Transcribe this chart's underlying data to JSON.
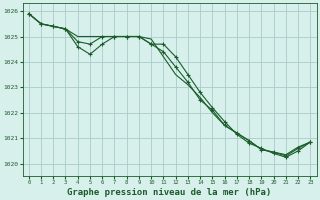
{
  "background_color": "#d8f0ec",
  "grid_color": "#aacccc",
  "line_color": "#1a5c2a",
  "xlabel": "Graphe pression niveau de la mer (hPa)",
  "xlabel_fontsize": 6.5,
  "xlim": [
    -0.5,
    23.5
  ],
  "ylim": [
    1019.5,
    1026.3
  ],
  "yticks": [
    1020,
    1021,
    1022,
    1023,
    1024,
    1025,
    1026
  ],
  "xticks": [
    0,
    1,
    2,
    3,
    4,
    5,
    6,
    7,
    8,
    9,
    10,
    11,
    12,
    13,
    14,
    15,
    16,
    17,
    18,
    19,
    20,
    21,
    22,
    23
  ],
  "series": [
    {
      "x": [
        0,
        1,
        2,
        3,
        4,
        5,
        6,
        7,
        8,
        9,
        10,
        11,
        12,
        13,
        14,
        15,
        16,
        17,
        18,
        19,
        20,
        21,
        22,
        23
      ],
      "y": [
        1025.9,
        1025.5,
        1025.4,
        1025.3,
        1025.0,
        1025.0,
        1025.0,
        1025.0,
        1025.0,
        1025.0,
        1024.9,
        1024.2,
        1023.5,
        1023.1,
        1022.6,
        1022.0,
        1021.5,
        1021.2,
        1020.9,
        1020.55,
        1020.45,
        1020.35,
        1020.65,
        1020.85
      ],
      "marker": false
    },
    {
      "x": [
        0,
        1,
        2,
        3,
        4,
        5,
        6,
        7,
        8,
        9,
        10,
        11,
        12,
        13,
        14,
        15,
        16,
        17,
        18,
        19,
        20,
        21,
        22,
        23
      ],
      "y": [
        1025.9,
        1025.5,
        1025.4,
        1025.3,
        1024.8,
        1024.7,
        1025.0,
        1025.0,
        1025.0,
        1025.0,
        1024.7,
        1024.4,
        1023.8,
        1023.2,
        1022.5,
        1022.1,
        1021.5,
        1021.2,
        1020.9,
        1020.55,
        1020.45,
        1020.3,
        1020.6,
        1020.85
      ],
      "marker": true
    },
    {
      "x": [
        0,
        1,
        2,
        3,
        4,
        5,
        6,
        7,
        8,
        9,
        10,
        11,
        12,
        13,
        14,
        15,
        16,
        17,
        18,
        19,
        20,
        21,
        22,
        23
      ],
      "y": [
        1025.9,
        1025.5,
        1025.4,
        1025.3,
        1024.6,
        1024.3,
        1024.7,
        1025.0,
        1025.0,
        1025.0,
        1024.7,
        1024.7,
        1024.2,
        1023.5,
        1022.8,
        1022.2,
        1021.65,
        1021.15,
        1020.8,
        1020.6,
        1020.4,
        1020.25,
        1020.5,
        1020.85
      ],
      "marker": true
    }
  ]
}
